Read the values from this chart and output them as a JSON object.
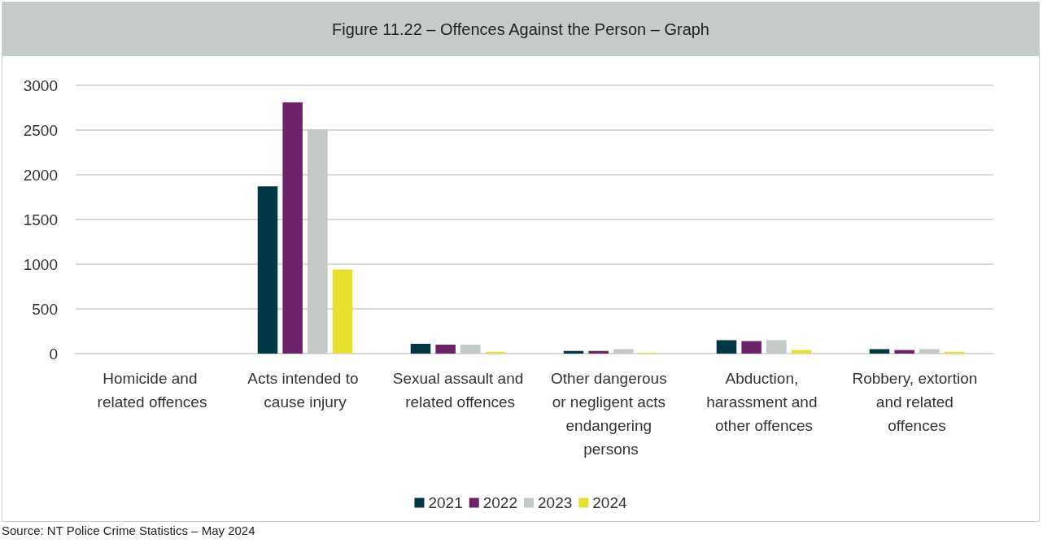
{
  "chart_data": {
    "type": "bar",
    "title": "Figure 11.22 – Offences Against the Person – Graph",
    "categories": [
      "Homicide and related offences",
      "Acts intended to cause injury",
      "Sexual assault and related offences",
      "Other dangerous or negligent acts endangering persons",
      "Abduction, harassment and other offences",
      "Robbery, extortion and related offences"
    ],
    "series": [
      {
        "name": "2021",
        "color": "#023843",
        "values": [
          0,
          1870,
          110,
          30,
          150,
          50
        ]
      },
      {
        "name": "2022",
        "color": "#6e2268",
        "values": [
          0,
          2810,
          100,
          30,
          140,
          40
        ]
      },
      {
        "name": "2023",
        "color": "#c1cac6",
        "values": [
          0,
          2510,
          100,
          50,
          150,
          50
        ]
      },
      {
        "name": "2024",
        "color": "#e8e02e",
        "values": [
          0,
          940,
          20,
          10,
          40,
          20
        ]
      }
    ],
    "ylim": [
      0,
      3000
    ],
    "yticks": [
      0,
      500,
      1000,
      1500,
      2000,
      2500,
      3000
    ],
    "grid": "y",
    "legend": "bottom",
    "annotations": [
      "Source: NT Police Crime Statistics – May 2024"
    ]
  }
}
